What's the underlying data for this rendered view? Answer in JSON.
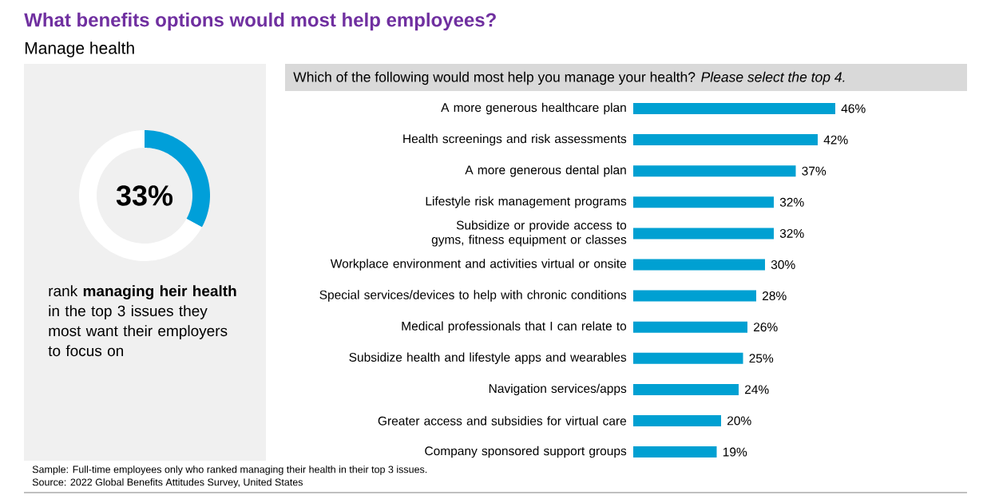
{
  "chart_data": [
    {
      "type": "donut",
      "title": "What benefits options would most help employees?",
      "subtitle": "Manage health",
      "categories": [
        null,
        null
      ],
      "values": [
        33,
        67
      ],
      "colors": [
        "#009fd9",
        "#ffffff"
      ],
      "annotations": [
        "33%",
        "rank **managing heir health** in the top 3 issues they most want their employers to focus on"
      ]
    },
    {
      "type": "bar",
      "orientation": "horizontal",
      "title": "Which of the following would most help you manage your health? *Please select the top 4.*",
      "categories": [
        "A more generous healthcare plan",
        "Health screenings and risk assessments",
        "A more generous dental plan",
        "Lifestyle risk management programs",
        "Subsidize or provide access to gyms, fitness equipment or classes",
        "Workplace environment and activities virtual or onsite",
        "Special services/devices to help with chronic conditions",
        "Medical professionals that I can relate to",
        "Subsidize health and lifestyle apps and wearables",
        "Navigation services/apps",
        "Greater access and subsidies for virtual care",
        "Company sponsored support groups"
      ],
      "values": [
        46,
        42,
        37,
        32,
        32,
        30,
        28,
        26,
        25,
        24,
        20,
        19
      ],
      "value_labels": [
        "46%",
        "42%",
        "37%",
        "32%",
        "32%",
        "30%",
        "28%",
        "26%",
        "25%",
        "24%",
        "20%",
        "19%"
      ],
      "color": "#00a0d2",
      "annotations": [
        "Sample: Full-time employees only who ranked managing their health in their top 3 issues.",
        "Source: 2022 Global Benefits Attitudes Survey, United States"
      ]
    }
  ]
}
